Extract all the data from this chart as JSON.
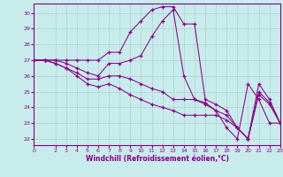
{
  "xlabel": "Windchill (Refroidissement éolien,°C)",
  "bg_color": "#c8ecec",
  "grid_color": "#b0d0d0",
  "line_color": "#880088",
  "xlim": [
    0,
    23
  ],
  "ylim": [
    21.6,
    30.6
  ],
  "yticks": [
    22,
    23,
    24,
    25,
    26,
    27,
    28,
    29,
    30
  ],
  "xticks": [
    0,
    2,
    3,
    4,
    5,
    6,
    7,
    8,
    9,
    10,
    11,
    12,
    13,
    14,
    15,
    16,
    17,
    18,
    19,
    20,
    21,
    22,
    23
  ],
  "series": [
    [
      27.0,
      27.0,
      27.0,
      27.0,
      27.0,
      27.0,
      27.0,
      27.5,
      27.5,
      28.8,
      29.5,
      30.2,
      30.4,
      30.4,
      29.3,
      29.3,
      24.5,
      24.2,
      23.8,
      22.7,
      22.0,
      25.5,
      24.5,
      23.0
    ],
    [
      27.0,
      27.0,
      27.0,
      26.8,
      26.5,
      26.2,
      26.0,
      26.8,
      26.8,
      27.0,
      27.3,
      28.5,
      29.5,
      30.2,
      26.0,
      24.5,
      24.3,
      23.8,
      22.7,
      22.0,
      25.5,
      24.5,
      23.0,
      23.0
    ],
    [
      27.0,
      27.0,
      26.8,
      26.5,
      26.2,
      25.8,
      25.8,
      26.0,
      26.0,
      25.8,
      25.5,
      25.2,
      25.0,
      24.5,
      24.5,
      24.5,
      24.2,
      23.8,
      23.5,
      22.7,
      22.0,
      25.0,
      24.3,
      23.0
    ],
    [
      27.0,
      27.0,
      26.8,
      26.5,
      26.0,
      25.5,
      25.3,
      25.5,
      25.2,
      24.8,
      24.5,
      24.2,
      24.0,
      23.8,
      23.5,
      23.5,
      23.5,
      23.5,
      23.2,
      22.7,
      22.0,
      24.8,
      24.2,
      23.0
    ]
  ]
}
